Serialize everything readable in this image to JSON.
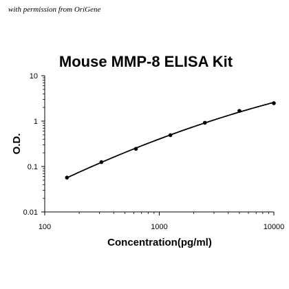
{
  "watermark": "with permission from OriGene",
  "chart_data": {
    "type": "scatter",
    "title": "Mouse MMP-8 ELISA Kit",
    "xlabel": "Concentration(pg/ml)",
    "ylabel": "O.D.",
    "xscale": "log",
    "yscale": "log",
    "xlim": [
      100,
      10000
    ],
    "ylim": [
      0.01,
      10
    ],
    "xticks": [
      100,
      1000,
      10000
    ],
    "xtick_labels": [
      "100",
      "1000",
      "10000"
    ],
    "yticks": [
      0.01,
      0.1,
      1,
      10
    ],
    "ytick_labels": [
      "0.01",
      "0.1",
      "1",
      "10"
    ],
    "grid": false,
    "series": [
      {
        "x": [
          156.25,
          312.5,
          625,
          1250,
          2500,
          5000,
          10000
        ],
        "y": [
          0.057,
          0.125,
          0.245,
          0.49,
          0.92,
          1.68,
          2.48
        ],
        "fit": "smooth curve"
      }
    ]
  }
}
